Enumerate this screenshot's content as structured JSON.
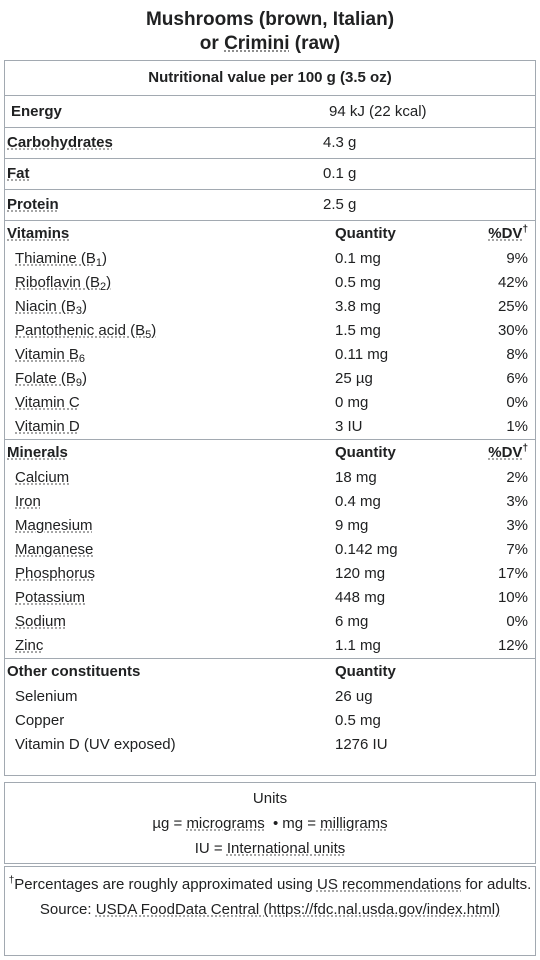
{
  "title": {
    "line1": "Mushrooms (brown, Italian)",
    "or": "or ",
    "crimini": "Crimini",
    "raw": " (raw)"
  },
  "header": "Nutritional value per 100 g (3.5 oz)",
  "energy": {
    "name": "Energy",
    "value": "94 kJ (22 kcal)"
  },
  "macros": [
    {
      "name": "Carbohydrates",
      "value": "4.3 g"
    },
    {
      "name": "Fat",
      "value": "0.1 g"
    },
    {
      "name": "Protein",
      "value": "2.5 g"
    }
  ],
  "vitamins": {
    "title": "Vitamins",
    "qty_header": "Quantity",
    "dv_header": "%DV",
    "dagger": "†",
    "items": [
      {
        "name": "Thiamine (B",
        "sub": "1",
        "close": ")",
        "qty": "0.1 mg",
        "dv": "9%"
      },
      {
        "name": "Riboflavin (B",
        "sub": "2",
        "close": ")",
        "qty": "0.5 mg",
        "dv": "42%"
      },
      {
        "name": "Niacin (B",
        "sub": "3",
        "close": ")",
        "qty": "3.8 mg",
        "dv": "25%"
      },
      {
        "name": "Pantothenic acid (B",
        "sub": "5",
        "close": ")",
        "qty": "1.5 mg",
        "dv": "30%"
      },
      {
        "name": "Vitamin B",
        "sub": "6",
        "close": "",
        "qty": "0.11 mg",
        "dv": "8%"
      },
      {
        "name": "Folate (B",
        "sub": "9",
        "close": ")",
        "qty": "25 µg",
        "dv": "6%"
      },
      {
        "name": "Vitamin C",
        "sub": "",
        "close": "",
        "qty": "0 mg",
        "dv": "0%"
      },
      {
        "name": "Vitamin D",
        "sub": "",
        "close": "",
        "qty": "3 IU",
        "dv": "1%"
      }
    ]
  },
  "minerals": {
    "title": "Minerals",
    "qty_header": "Quantity",
    "dv_header": "%DV",
    "dagger": "†",
    "items": [
      {
        "name": "Calcium",
        "qty": "18 mg",
        "dv": "2%"
      },
      {
        "name": "Iron",
        "qty": "0.4 mg",
        "dv": "3%"
      },
      {
        "name": "Magnesium",
        "qty": "9 mg",
        "dv": "3%"
      },
      {
        "name": "Manganese",
        "qty": "0.142 mg",
        "dv": "7%"
      },
      {
        "name": "Phosphorus",
        "qty": "120 mg",
        "dv": "17%"
      },
      {
        "name": "Potassium",
        "qty": "448 mg",
        "dv": "10%"
      },
      {
        "name": "Sodium",
        "qty": "6 mg",
        "dv": "0%"
      },
      {
        "name": "Zinc",
        "qty": "1.1 mg",
        "dv": "12%"
      }
    ]
  },
  "other": {
    "title": "Other constituents",
    "qty_header": "Quantity",
    "items": [
      {
        "name": "Selenium",
        "qty": "26 ug"
      },
      {
        "name": "Copper",
        "qty": "0.5 mg"
      },
      {
        "name": "Vitamin D (UV exposed)",
        "qty": "1276 IU"
      }
    ]
  },
  "units": {
    "title": "Units",
    "ug": "µg = ",
    "micrograms": "micrograms",
    "bullet": "•",
    "mg": "mg = ",
    "milligrams": "milligrams",
    "iu": "IU = ",
    "international": "International units"
  },
  "footnote": {
    "dagger": "†",
    "text1": "Percentages are roughly approximated using ",
    "us_rec": "US recommendations",
    "text2": " for adults.",
    "source_label": "Source: ",
    "source_link": "USDA FoodData Central (https://fdc.nal.usda.gov/index.html)"
  }
}
